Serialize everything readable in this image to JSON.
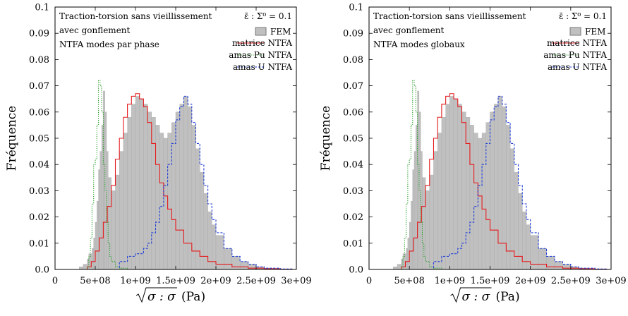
{
  "chart_data": [
    {
      "type": "histogram",
      "panel": "left",
      "xlabel_root": "σ : σ",
      "xlabel_unit": "(Pa)",
      "ylabel": "Fréquence",
      "xlim": [
        0,
        3000000000
      ],
      "ylim": [
        0,
        0.1
      ],
      "x_ticks": [
        0,
        500000000,
        1000000000,
        1500000000,
        2000000000,
        2500000000,
        3000000000
      ],
      "x_tick_labels": [
        "0",
        "5e+08",
        "1e+09",
        "1.5e+09",
        "2e+09",
        "2.5e+09",
        "3e+09"
      ],
      "y_ticks": [
        0,
        0.01,
        0.02,
        0.03,
        0.04,
        0.05,
        0.06,
        0.07,
        0.08,
        0.09,
        0.1
      ],
      "y_tick_labels": [
        "0.0",
        "0.01",
        "0.02",
        "0.03",
        "0.04",
        "0.05",
        "0.06",
        "0.07",
        "0.08",
        "0.09",
        "0.1"
      ],
      "annotation_lines": [
        "Traction-torsion sans vieillissement",
        "avec gonflement",
        "NTFA modes par phase"
      ],
      "annotation_right": "ε̄ : Σ⁰ = 0.1",
      "legend": [
        "FEM",
        "matrice NTFA",
        "amas Pu NTFA",
        "amas U NTFA"
      ],
      "legend_position": "top-right",
      "series": [
        {
          "name": "FEM",
          "style": "grey-filled-bars",
          "color": "#c0c0c0",
          "x": [
            250000000,
            300000000,
            350000000,
            400000000,
            420000000,
            460000000,
            480000000,
            500000000,
            520000000,
            540000000,
            560000000,
            580000000,
            600000000,
            620000000,
            640000000,
            660000000,
            700000000,
            750000000,
            800000000,
            850000000,
            900000000,
            950000000,
            1000000000,
            1050000000,
            1100000000,
            1150000000,
            1200000000,
            1250000000,
            1300000000,
            1350000000,
            1400000000,
            1450000000,
            1500000000,
            1550000000,
            1600000000,
            1650000000,
            1700000000,
            1750000000,
            1800000000,
            1850000000,
            1900000000,
            1950000000,
            2000000000,
            2100000000,
            2200000000,
            2300000000,
            2400000000,
            2500000000,
            2600000000,
            2700000000,
            2800000000,
            2900000000,
            2950000000
          ],
          "y": [
            0.0,
            0.001,
            0.002,
            0.004,
            0.006,
            0.008,
            0.012,
            0.018,
            0.026,
            0.038,
            0.045,
            0.055,
            0.068,
            0.06,
            0.045,
            0.035,
            0.03,
            0.036,
            0.045,
            0.052,
            0.058,
            0.063,
            0.066,
            0.065,
            0.063,
            0.06,
            0.058,
            0.055,
            0.052,
            0.05,
            0.052,
            0.056,
            0.06,
            0.063,
            0.066,
            0.062,
            0.055,
            0.046,
            0.037,
            0.029,
            0.022,
            0.017,
            0.013,
            0.008,
            0.005,
            0.003,
            0.002,
            0.001,
            0.0005,
            0.0003,
            0.0002,
            0.0001,
            0.0
          ]
        },
        {
          "name": "matrice NTFA",
          "style": "red-solid-step",
          "color": "#e41a1c",
          "x": [
            200000000,
            400000000,
            450000000,
            500000000,
            550000000,
            600000000,
            650000000,
            700000000,
            750000000,
            800000000,
            850000000,
            900000000,
            950000000,
            1000000000,
            1050000000,
            1100000000,
            1150000000,
            1200000000,
            1250000000,
            1300000000,
            1350000000,
            1400000000,
            1450000000,
            1500000000,
            1600000000,
            1700000000,
            1800000000,
            1900000000,
            2000000000,
            2200000000,
            2400000000,
            2600000000,
            2800000000,
            2950000000
          ],
          "y": [
            0.0,
            0.001,
            0.003,
            0.007,
            0.012,
            0.018,
            0.024,
            0.032,
            0.042,
            0.05,
            0.058,
            0.063,
            0.066,
            0.067,
            0.065,
            0.062,
            0.056,
            0.048,
            0.04,
            0.033,
            0.028,
            0.023,
            0.019,
            0.015,
            0.01,
            0.007,
            0.005,
            0.003,
            0.002,
            0.001,
            0.0005,
            0.0003,
            0.0001,
            0.0
          ]
        },
        {
          "name": "amas Pu NTFA",
          "style": "green-dotted-step",
          "color": "#2ca02c",
          "x": [
            350000000,
            400000000,
            420000000,
            440000000,
            460000000,
            480000000,
            500000000,
            520000000,
            540000000,
            560000000,
            580000000,
            600000000,
            620000000,
            640000000,
            660000000,
            680000000,
            700000000,
            750000000,
            800000000,
            900000000
          ],
          "y": [
            0.0,
            0.001,
            0.005,
            0.012,
            0.025,
            0.04,
            0.042,
            0.055,
            0.072,
            0.07,
            0.06,
            0.04,
            0.03,
            0.018,
            0.01,
            0.005,
            0.003,
            0.001,
            0.0005,
            0.0
          ]
        },
        {
          "name": "amas U NTFA",
          "style": "blue-dashed-step",
          "color": "#1f3dd6",
          "x": [
            600000000,
            800000000,
            900000000,
            1000000000,
            1100000000,
            1150000000,
            1200000000,
            1250000000,
            1300000000,
            1350000000,
            1400000000,
            1450000000,
            1500000000,
            1550000000,
            1600000000,
            1650000000,
            1700000000,
            1750000000,
            1800000000,
            1850000000,
            1900000000,
            1950000000,
            2000000000,
            2100000000,
            2200000000,
            2300000000,
            2400000000,
            2500000000,
            2600000000,
            2800000000,
            2950000000
          ],
          "y": [
            0.0,
            0.003,
            0.005,
            0.006,
            0.008,
            0.01,
            0.014,
            0.018,
            0.024,
            0.032,
            0.04,
            0.048,
            0.057,
            0.062,
            0.066,
            0.063,
            0.056,
            0.048,
            0.04,
            0.032,
            0.025,
            0.019,
            0.014,
            0.008,
            0.005,
            0.003,
            0.002,
            0.001,
            0.0005,
            0.0002,
            0.0
          ]
        }
      ]
    },
    {
      "type": "histogram",
      "panel": "right",
      "xlabel_root": "σ : σ",
      "xlabel_unit": "(Pa)",
      "ylabel": "Fréquence",
      "xlim": [
        0,
        3000000000
      ],
      "ylim": [
        0,
        0.1
      ],
      "x_ticks": [
        0,
        500000000,
        1000000000,
        1500000000,
        2000000000,
        2500000000,
        3000000000
      ],
      "x_tick_labels": [
        "0",
        "5e+08",
        "1e+09",
        "1.5e+09",
        "2e+09",
        "2.5e+09",
        "3e+09"
      ],
      "y_ticks": [
        0,
        0.01,
        0.02,
        0.03,
        0.04,
        0.05,
        0.06,
        0.07,
        0.08,
        0.09,
        0.1
      ],
      "y_tick_labels": [
        "0.0",
        "0.01",
        "0.02",
        "0.03",
        "0.04",
        "0.05",
        "0.06",
        "0.07",
        "0.08",
        "0.09",
        "0.1"
      ],
      "annotation_lines": [
        "Traction-torsion sans vieillissement",
        "avec gonflement",
        "NTFA modes globaux"
      ],
      "annotation_right": "ε̄ : Σ⁰ = 0.1",
      "legend": [
        "FEM",
        "matrice NTFA",
        "amas Pu NTFA",
        "amas U NTFA"
      ],
      "legend_position": "top-right",
      "series": [
        {
          "name": "FEM",
          "style": "grey-filled-bars",
          "color": "#c0c0c0",
          "x": [
            250000000,
            300000000,
            350000000,
            400000000,
            420000000,
            460000000,
            480000000,
            500000000,
            520000000,
            540000000,
            560000000,
            580000000,
            600000000,
            620000000,
            640000000,
            660000000,
            700000000,
            750000000,
            800000000,
            850000000,
            900000000,
            950000000,
            1000000000,
            1050000000,
            1100000000,
            1150000000,
            1200000000,
            1250000000,
            1300000000,
            1350000000,
            1400000000,
            1450000000,
            1500000000,
            1550000000,
            1600000000,
            1650000000,
            1700000000,
            1750000000,
            1800000000,
            1850000000,
            1900000000,
            1950000000,
            2000000000,
            2100000000,
            2200000000,
            2300000000,
            2400000000,
            2500000000,
            2600000000,
            2700000000,
            2800000000,
            2900000000,
            2950000000
          ],
          "y": [
            0.0,
            0.001,
            0.002,
            0.004,
            0.006,
            0.008,
            0.012,
            0.018,
            0.026,
            0.038,
            0.045,
            0.055,
            0.068,
            0.06,
            0.045,
            0.035,
            0.03,
            0.036,
            0.045,
            0.052,
            0.058,
            0.063,
            0.066,
            0.065,
            0.063,
            0.06,
            0.058,
            0.055,
            0.052,
            0.05,
            0.052,
            0.056,
            0.06,
            0.063,
            0.066,
            0.062,
            0.055,
            0.046,
            0.037,
            0.029,
            0.022,
            0.017,
            0.013,
            0.008,
            0.005,
            0.003,
            0.002,
            0.001,
            0.0005,
            0.0003,
            0.0002,
            0.0001,
            0.0
          ]
        },
        {
          "name": "matrice NTFA",
          "style": "red-solid-step",
          "color": "#e41a1c",
          "x": [
            200000000,
            400000000,
            450000000,
            500000000,
            550000000,
            600000000,
            650000000,
            700000000,
            750000000,
            800000000,
            850000000,
            900000000,
            950000000,
            1000000000,
            1050000000,
            1100000000,
            1150000000,
            1200000000,
            1250000000,
            1300000000,
            1350000000,
            1400000000,
            1450000000,
            1500000000,
            1600000000,
            1700000000,
            1800000000,
            1900000000,
            2000000000,
            2200000000,
            2400000000,
            2600000000,
            2800000000,
            2950000000
          ],
          "y": [
            0.0,
            0.001,
            0.003,
            0.007,
            0.012,
            0.018,
            0.024,
            0.032,
            0.042,
            0.05,
            0.058,
            0.063,
            0.066,
            0.067,
            0.065,
            0.062,
            0.056,
            0.048,
            0.04,
            0.033,
            0.028,
            0.023,
            0.019,
            0.015,
            0.01,
            0.007,
            0.005,
            0.003,
            0.002,
            0.001,
            0.0005,
            0.0003,
            0.0001,
            0.0
          ]
        },
        {
          "name": "amas Pu NTFA",
          "style": "green-dotted-step",
          "color": "#2ca02c",
          "x": [
            350000000,
            400000000,
            420000000,
            440000000,
            460000000,
            480000000,
            500000000,
            520000000,
            540000000,
            560000000,
            580000000,
            600000000,
            620000000,
            640000000,
            660000000,
            680000000,
            700000000,
            750000000,
            800000000,
            900000000
          ],
          "y": [
            0.0,
            0.001,
            0.005,
            0.012,
            0.025,
            0.04,
            0.042,
            0.055,
            0.072,
            0.07,
            0.06,
            0.04,
            0.03,
            0.018,
            0.01,
            0.005,
            0.003,
            0.001,
            0.0005,
            0.0
          ]
        },
        {
          "name": "amas U NTFA",
          "style": "blue-dashed-step",
          "color": "#1f3dd6",
          "x": [
            600000000,
            800000000,
            900000000,
            1000000000,
            1100000000,
            1150000000,
            1200000000,
            1250000000,
            1300000000,
            1350000000,
            1400000000,
            1450000000,
            1500000000,
            1550000000,
            1600000000,
            1650000000,
            1700000000,
            1750000000,
            1800000000,
            1850000000,
            1900000000,
            1950000000,
            2000000000,
            2100000000,
            2200000000,
            2300000000,
            2400000000,
            2500000000,
            2600000000,
            2800000000,
            2950000000
          ],
          "y": [
            0.0,
            0.003,
            0.005,
            0.006,
            0.008,
            0.01,
            0.014,
            0.018,
            0.024,
            0.032,
            0.04,
            0.048,
            0.057,
            0.062,
            0.066,
            0.063,
            0.056,
            0.048,
            0.04,
            0.032,
            0.025,
            0.019,
            0.014,
            0.008,
            0.005,
            0.003,
            0.002,
            0.001,
            0.0005,
            0.0002,
            0.0
          ]
        }
      ]
    }
  ]
}
